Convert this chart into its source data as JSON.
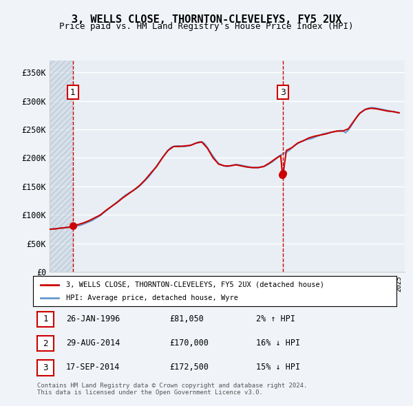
{
  "title_line1": "3, WELLS CLOSE, THORNTON-CLEVELEYS, FY5 2UX",
  "title_line2": "Price paid vs. HM Land Registry's House Price Index (HPI)",
  "ylabel_ticks": [
    "£0",
    "£50K",
    "£100K",
    "£150K",
    "£200K",
    "£250K",
    "£300K",
    "£350K"
  ],
  "ytick_values": [
    0,
    50000,
    100000,
    150000,
    200000,
    250000,
    300000,
    350000
  ],
  "ylim": [
    0,
    370000
  ],
  "xlim_start": 1994.0,
  "xlim_end": 2025.5,
  "transaction_color": "#cc0000",
  "hpi_color": "#6699cc",
  "legend_label1": "3, WELLS CLOSE, THORNTON-CLEVELEYS, FY5 2UX (detached house)",
  "legend_label2": "HPI: Average price, detached house, Wyre",
  "transactions": [
    {
      "index": 1,
      "date_num": 1996.07,
      "price": 81050,
      "label": "1"
    },
    {
      "index": 2,
      "date_num": 2014.66,
      "price": 170000,
      "label": "2"
    },
    {
      "index": 3,
      "date_num": 2014.72,
      "price": 172500,
      "label": "3"
    }
  ],
  "table_rows": [
    [
      "1",
      "26-JAN-1996",
      "£81,050",
      "2% ↑ HPI"
    ],
    [
      "2",
      "29-AUG-2014",
      "£170,000",
      "16% ↓ HPI"
    ],
    [
      "3",
      "17-SEP-2014",
      "£172,500",
      "15% ↓ HPI"
    ]
  ],
  "footnote": "Contains HM Land Registry data © Crown copyright and database right 2024.\nThis data is licensed under the Open Government Licence v3.0.",
  "hpi_line": {
    "x": [
      1994.0,
      1994.25,
      1994.5,
      1994.75,
      1995.0,
      1995.25,
      1995.5,
      1995.75,
      1996.0,
      1996.25,
      1996.5,
      1996.75,
      1997.0,
      1997.25,
      1997.5,
      1997.75,
      1998.0,
      1998.25,
      1998.5,
      1998.75,
      1999.0,
      1999.25,
      1999.5,
      1999.75,
      2000.0,
      2000.25,
      2000.5,
      2000.75,
      2001.0,
      2001.25,
      2001.5,
      2001.75,
      2002.0,
      2002.25,
      2002.5,
      2002.75,
      2003.0,
      2003.25,
      2003.5,
      2003.75,
      2004.0,
      2004.25,
      2004.5,
      2004.75,
      2005.0,
      2005.25,
      2005.5,
      2005.75,
      2006.0,
      2006.25,
      2006.5,
      2006.75,
      2007.0,
      2007.25,
      2007.5,
      2007.75,
      2008.0,
      2008.25,
      2008.5,
      2008.75,
      2009.0,
      2009.25,
      2009.5,
      2009.75,
      2010.0,
      2010.25,
      2010.5,
      2010.75,
      2011.0,
      2011.25,
      2011.5,
      2011.75,
      2012.0,
      2012.25,
      2012.5,
      2012.75,
      2013.0,
      2013.25,
      2013.5,
      2013.75,
      2014.0,
      2014.25,
      2014.5,
      2014.75,
      2015.0,
      2015.25,
      2015.5,
      2015.75,
      2016.0,
      2016.25,
      2016.5,
      2016.75,
      2017.0,
      2017.25,
      2017.5,
      2017.75,
      2018.0,
      2018.25,
      2018.5,
      2018.75,
      2019.0,
      2019.25,
      2019.5,
      2019.75,
      2020.0,
      2020.25,
      2020.5,
      2020.75,
      2021.0,
      2021.25,
      2021.5,
      2021.75,
      2022.0,
      2022.25,
      2022.5,
      2022.75,
      2023.0,
      2023.25,
      2023.5,
      2023.75,
      2024.0,
      2024.25,
      2024.5,
      2024.75,
      2025.0
    ],
    "y": [
      75000,
      75500,
      76000,
      76500,
      77000,
      77500,
      78000,
      78500,
      79000,
      80000,
      81000,
      82000,
      84000,
      86000,
      88000,
      90000,
      93000,
      96000,
      99000,
      103000,
      107000,
      111000,
      115000,
      119000,
      123000,
      127000,
      131000,
      135000,
      138000,
      141000,
      144000,
      147000,
      151000,
      156000,
      161000,
      166000,
      172000,
      179000,
      186000,
      193000,
      200000,
      207000,
      213000,
      218000,
      220000,
      221000,
      221000,
      220000,
      220000,
      221000,
      222000,
      224000,
      226000,
      228000,
      228000,
      225000,
      218000,
      210000,
      203000,
      196000,
      190000,
      188000,
      186000,
      185000,
      186000,
      187000,
      188000,
      188000,
      187000,
      186000,
      185000,
      184000,
      183000,
      183000,
      183000,
      184000,
      185000,
      187000,
      190000,
      193000,
      197000,
      202000,
      205000,
      208000,
      210000,
      213000,
      218000,
      222000,
      225000,
      228000,
      230000,
      232000,
      233000,
      234000,
      236000,
      238000,
      240000,
      242000,
      243000,
      244000,
      245000,
      246000,
      247000,
      248000,
      248000,
      244000,
      249000,
      256000,
      264000,
      272000,
      278000,
      282000,
      285000,
      287000,
      288000,
      288000,
      287000,
      286000,
      285000,
      284000,
      283000,
      282000,
      281000,
      280000,
      279000
    ]
  },
  "red_line": {
    "x": [
      1994.0,
      1994.5,
      1995.0,
      1995.5,
      1996.0,
      1996.07,
      1996.5,
      1997.0,
      1997.5,
      1998.0,
      1998.5,
      1999.0,
      1999.5,
      2000.0,
      2000.5,
      2001.0,
      2001.5,
      2002.0,
      2002.5,
      2003.0,
      2003.5,
      2004.0,
      2004.5,
      2005.0,
      2005.5,
      2006.0,
      2006.5,
      2007.0,
      2007.5,
      2008.0,
      2008.5,
      2009.0,
      2009.5,
      2010.0,
      2010.5,
      2011.0,
      2011.5,
      2012.0,
      2012.5,
      2013.0,
      2013.5,
      2014.0,
      2014.5,
      2014.66,
      2014.72,
      2015.0,
      2015.5,
      2016.0,
      2016.5,
      2017.0,
      2017.5,
      2018.0,
      2018.5,
      2019.0,
      2019.5,
      2020.0,
      2020.5,
      2021.0,
      2021.5,
      2022.0,
      2022.5,
      2023.0,
      2023.5,
      2024.0,
      2024.5,
      2025.0
    ],
    "y": [
      75000,
      75500,
      77000,
      78000,
      79500,
      81050,
      83000,
      86000,
      90000,
      95000,
      100000,
      108000,
      115000,
      122000,
      130000,
      137000,
      144000,
      152000,
      162000,
      174000,
      185000,
      200000,
      213000,
      220000,
      220000,
      221000,
      222000,
      226000,
      228000,
      217000,
      200000,
      189000,
      186000,
      186000,
      188000,
      186000,
      184000,
      183000,
      183000,
      185000,
      191000,
      198000,
      204000,
      170000,
      172500,
      213000,
      218000,
      226000,
      230000,
      235000,
      238000,
      240000,
      242000,
      245000,
      247000,
      247000,
      251000,
      265000,
      278000,
      285000,
      287000,
      286000,
      284000,
      282000,
      281000,
      279000
    ]
  },
  "hatched_region_end": 1996.07,
  "vline1_x": 1996.07,
  "vline2_x": 2014.69,
  "bg_color": "#f0f4f8",
  "plot_bg": "#e8eef4",
  "grid_color": "#ffffff",
  "hatch_color": "#c8d4e0"
}
